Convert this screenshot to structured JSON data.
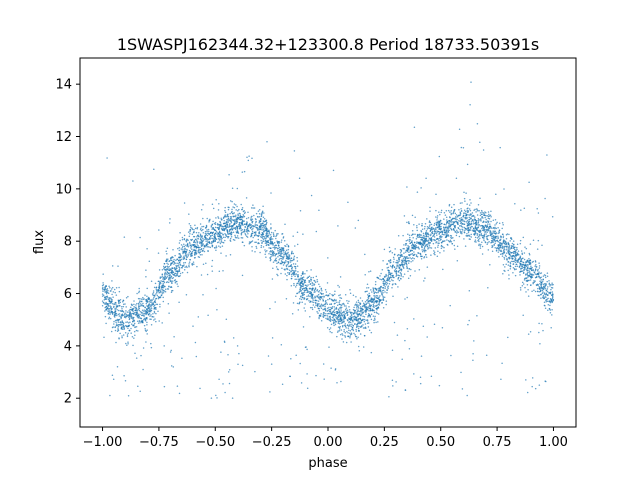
{
  "chart_data": {
    "type": "scatter",
    "title": "1SWASPJ162344.32+123300.8 Period 18733.50391s",
    "xlabel": "phase",
    "ylabel": "flux",
    "xlim": [
      -1.1,
      1.1
    ],
    "ylim": [
      0.9,
      15.0
    ],
    "xticks": [
      -1.0,
      -0.75,
      -0.5,
      -0.25,
      0.0,
      0.25,
      0.5,
      0.75,
      1.0
    ],
    "xtick_labels": [
      "−1.00",
      "−0.75",
      "−0.50",
      "−0.25",
      "0.00",
      "0.25",
      "0.50",
      "0.75",
      "1.00"
    ],
    "yticks": [
      2,
      4,
      6,
      8,
      10,
      12,
      14
    ],
    "ytick_labels": [
      "2",
      "4",
      "6",
      "8",
      "10",
      "12",
      "14"
    ],
    "point_color": "#1f77b4",
    "grid": false,
    "curve": {
      "phase": [
        -1.0,
        -0.9,
        -0.8,
        -0.7,
        -0.6,
        -0.5,
        -0.4,
        -0.3,
        -0.2,
        -0.1,
        0.0,
        0.1,
        0.2,
        0.3,
        0.4,
        0.5,
        0.6,
        0.7,
        0.8,
        0.9,
        1.0
      ],
      "flux": [
        5.8,
        5.0,
        5.4,
        6.8,
        7.8,
        8.3,
        8.7,
        8.5,
        7.5,
        6.2,
        5.4,
        5.0,
        5.6,
        7.0,
        7.9,
        8.4,
        8.7,
        8.5,
        7.6,
        6.8,
        5.9
      ]
    },
    "scatter_width": 0.35
  }
}
